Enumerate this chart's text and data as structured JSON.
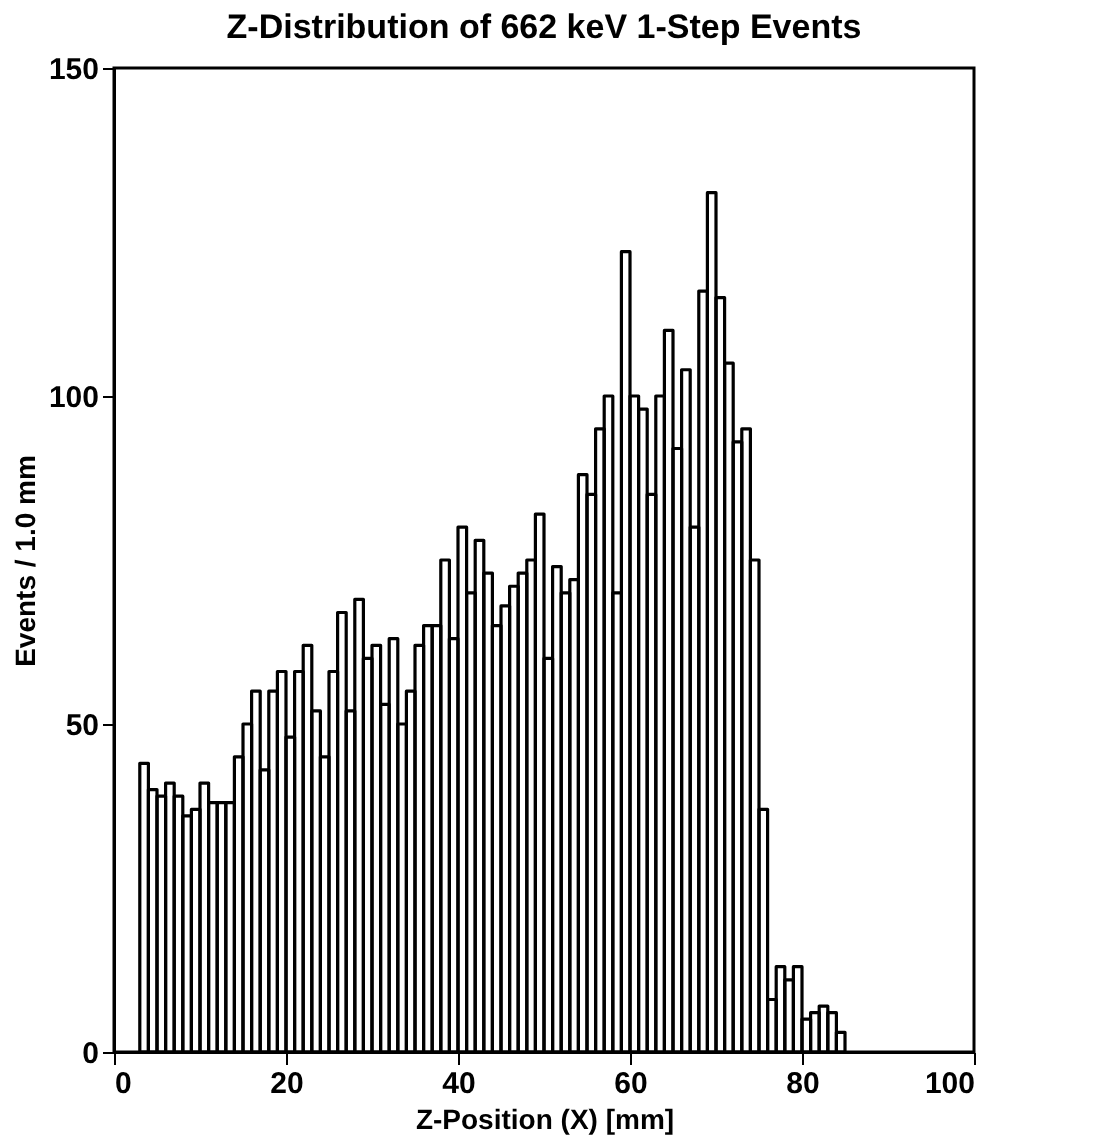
{
  "chart_data": {
    "type": "histogram",
    "title": "Z-Distribution of 662 keV 1-Step Events",
    "xlabel": "Z-Position (X) [mm]",
    "ylabel": "Events / 1.0 mm",
    "bins": [
      3,
      4,
      5,
      6,
      7,
      8,
      9,
      10,
      11,
      12,
      13,
      14,
      15,
      16,
      17,
      18,
      19,
      20,
      21,
      22,
      23,
      24,
      25,
      26,
      27,
      28,
      29,
      30,
      31,
      32,
      33,
      34,
      35,
      36,
      37,
      38,
      39,
      40,
      41,
      42,
      43,
      44,
      45,
      46,
      47,
      48,
      49,
      50,
      51,
      52,
      53,
      54,
      55,
      56,
      57,
      58,
      59,
      60,
      61,
      62,
      63,
      64,
      65,
      66,
      67,
      68,
      69,
      70,
      71,
      72,
      73,
      74,
      75,
      76,
      77,
      78,
      79,
      80,
      81,
      82,
      83,
      84,
      85
    ],
    "values": [
      44,
      40,
      39,
      41,
      39,
      36,
      37,
      41,
      38,
      38,
      38,
      45,
      50,
      55,
      43,
      55,
      58,
      48,
      58,
      62,
      52,
      45,
      58,
      67,
      52,
      69,
      60,
      62,
      53,
      63,
      50,
      55,
      62,
      65,
      65,
      75,
      63,
      80,
      70,
      78,
      73,
      65,
      68,
      71,
      73,
      75,
      82,
      60,
      74,
      70,
      72,
      88,
      85,
      95,
      100,
      70,
      122,
      100,
      98,
      85,
      100,
      110,
      92,
      104,
      80,
      116,
      131,
      115,
      105,
      93,
      95,
      75,
      37,
      8,
      13,
      11,
      13,
      5,
      6,
      7,
      6,
      3
    ],
    "color": "#000000",
    "xlim": [
      0,
      100
    ],
    "xticks": [
      0,
      20,
      40,
      60,
      80,
      100
    ],
    "ylim": [
      0,
      150
    ],
    "yticks": [
      0,
      50,
      100,
      150
    ],
    "grid": false
  }
}
